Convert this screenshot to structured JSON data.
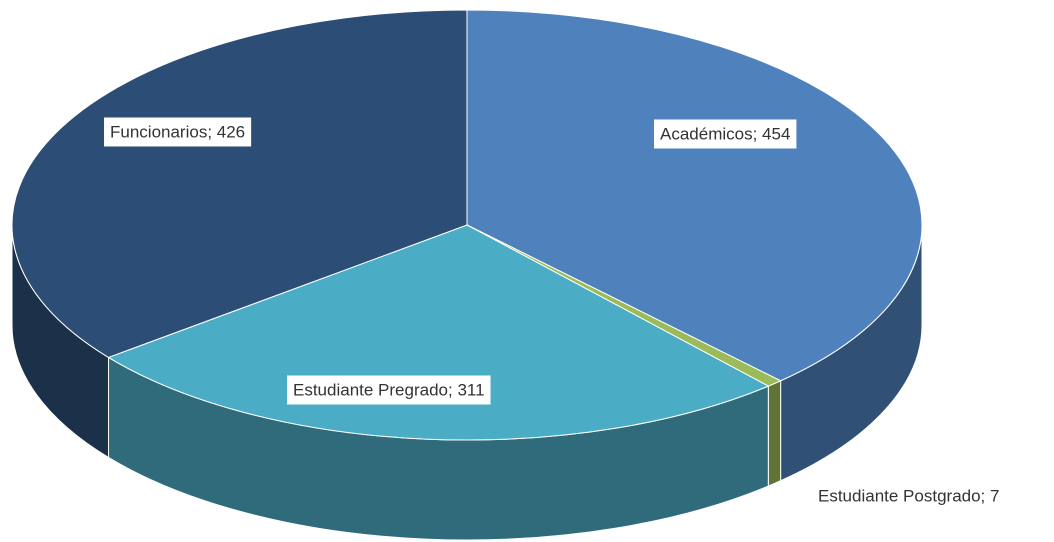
{
  "chart_data": {
    "type": "pie",
    "categories": [
      "Académicos",
      "Estudiante Postgrado",
      "Estudiante Pregrado",
      "Funcionarios"
    ],
    "values": [
      454,
      7,
      311,
      426
    ],
    "value_labels": [
      "Académicos; 454",
      "Estudiante Postgrado; 7",
      "Estudiante Pregrado; 311",
      "Funcionarios; 426"
    ],
    "colors": [
      "#4f81bd",
      "#9bbb59",
      "#4bacc6",
      "#2c4d75"
    ]
  }
}
